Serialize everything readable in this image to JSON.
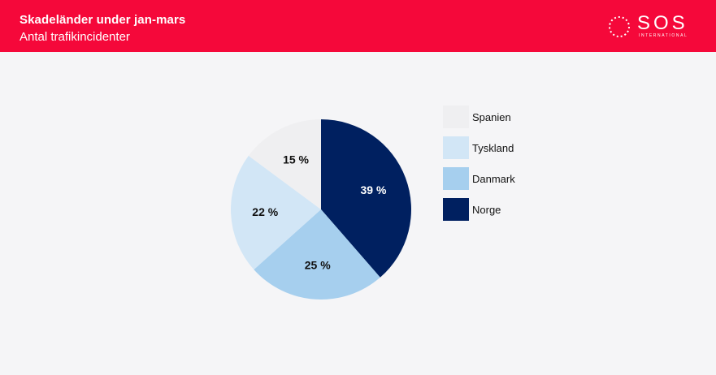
{
  "header": {
    "title": "Skadeländer under jan-mars",
    "subtitle": "Antal trafikincidenter",
    "logo": {
      "text": "SOS",
      "subtext": "INTERNATIONAL"
    }
  },
  "colors": {
    "header_bg": "#f5083a",
    "background": "#f5f5f7"
  },
  "chart_data": {
    "type": "pie",
    "title": "Skadeländer under jan-mars",
    "subtitle": "Antal trafikincidenter",
    "legend_position": "right",
    "slices": [
      {
        "name": "Norge",
        "value": 39,
        "label": "39 %",
        "color": "#002060",
        "text_color": "#ffffff"
      },
      {
        "name": "Danmark",
        "value": 25,
        "label": "25 %",
        "color": "#a6cfee",
        "text_color": "#111111"
      },
      {
        "name": "Tyskland",
        "value": 22,
        "label": "22 %",
        "color": "#d2e6f6",
        "text_color": "#111111"
      },
      {
        "name": "Spanien",
        "value": 15,
        "label": "15 %",
        "color": "#efeff1",
        "text_color": "#111111"
      }
    ],
    "legend": [
      "Spanien",
      "Tyskland",
      "Danmark",
      "Norge"
    ]
  }
}
